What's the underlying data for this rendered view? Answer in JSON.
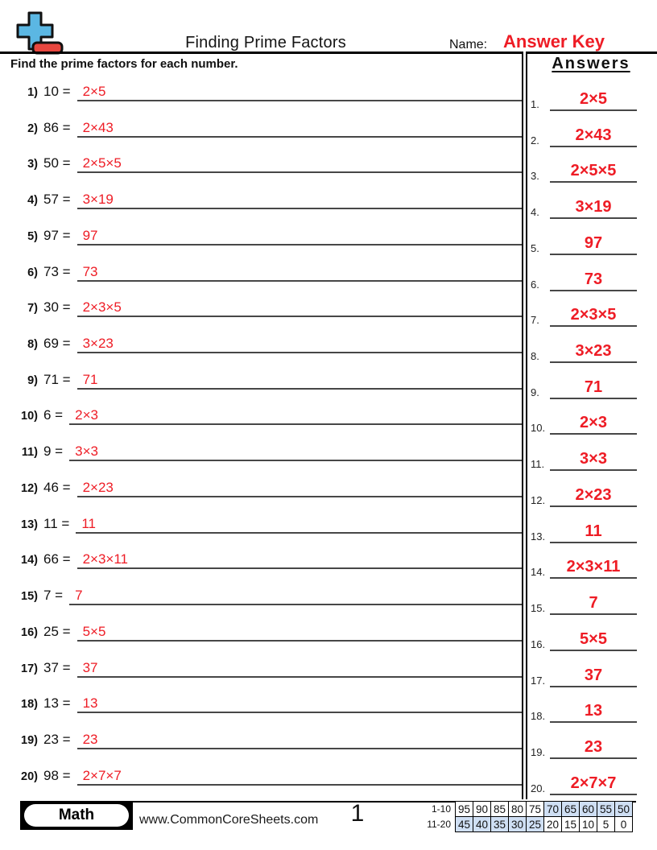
{
  "header": {
    "title": "Finding Prime Factors",
    "name_label": "Name:",
    "answer_key": "Answer Key",
    "instructions": "Find the prime factors for each number.",
    "answers_heading": "Answers"
  },
  "problems": [
    {
      "label": "1)",
      "expr": "10 =",
      "answer": "2×5"
    },
    {
      "label": "2)",
      "expr": "86 =",
      "answer": "2×43"
    },
    {
      "label": "3)",
      "expr": "50 =",
      "answer": "2×5×5"
    },
    {
      "label": "4)",
      "expr": "57 =",
      "answer": "3×19"
    },
    {
      "label": "5)",
      "expr": "97 =",
      "answer": "97"
    },
    {
      "label": "6)",
      "expr": "73 =",
      "answer": "73"
    },
    {
      "label": "7)",
      "expr": "30 =",
      "answer": "2×3×5"
    },
    {
      "label": "8)",
      "expr": "69 =",
      "answer": "3×23"
    },
    {
      "label": "9)",
      "expr": "71 =",
      "answer": "71"
    },
    {
      "label": "10)",
      "expr": "6 =",
      "answer": "2×3"
    },
    {
      "label": "11)",
      "expr": "9 =",
      "answer": "3×3"
    },
    {
      "label": "12)",
      "expr": "46 =",
      "answer": "2×23"
    },
    {
      "label": "13)",
      "expr": "11 =",
      "answer": "11"
    },
    {
      "label": "14)",
      "expr": "66 =",
      "answer": "2×3×11"
    },
    {
      "label": "15)",
      "expr": "7 =",
      "answer": "7"
    },
    {
      "label": "16)",
      "expr": "25 =",
      "answer": "5×5"
    },
    {
      "label": "17)",
      "expr": "37 =",
      "answer": "37"
    },
    {
      "label": "18)",
      "expr": "13 =",
      "answer": "13"
    },
    {
      "label": "19)",
      "expr": "23 =",
      "answer": "23"
    },
    {
      "label": "20)",
      "expr": "98 =",
      "answer": "2×7×7"
    }
  ],
  "answer_column": [
    {
      "label": "1.",
      "value": "2×5"
    },
    {
      "label": "2.",
      "value": "2×43"
    },
    {
      "label": "3.",
      "value": "2×5×5"
    },
    {
      "label": "4.",
      "value": "3×19"
    },
    {
      "label": "5.",
      "value": "97"
    },
    {
      "label": "6.",
      "value": "73"
    },
    {
      "label": "7.",
      "value": "2×3×5"
    },
    {
      "label": "8.",
      "value": "3×23"
    },
    {
      "label": "9.",
      "value": "71"
    },
    {
      "label": "10.",
      "value": "2×3"
    },
    {
      "label": "11.",
      "value": "3×3"
    },
    {
      "label": "12.",
      "value": "2×23"
    },
    {
      "label": "13.",
      "value": "11"
    },
    {
      "label": "14.",
      "value": "2×3×11"
    },
    {
      "label": "15.",
      "value": "7"
    },
    {
      "label": "16.",
      "value": "5×5"
    },
    {
      "label": "17.",
      "value": "37"
    },
    {
      "label": "18.",
      "value": "13"
    },
    {
      "label": "19.",
      "value": "23"
    },
    {
      "label": "20.",
      "value": "2×7×7"
    }
  ],
  "footer": {
    "subject_badge": "Math",
    "website": "www.CommonCoreSheets.com",
    "page_number": "1",
    "score_table": {
      "rows": [
        {
          "label": "1-10",
          "cells": [
            "95",
            "90",
            "85",
            "80",
            "75",
            "70",
            "65",
            "60",
            "55",
            "50"
          ],
          "highlight": [
            0,
            0,
            0,
            0,
            0,
            1,
            1,
            1,
            1,
            1
          ]
        },
        {
          "label": "11-20",
          "cells": [
            "45",
            "40",
            "35",
            "30",
            "25",
            "20",
            "15",
            "10",
            "5",
            "0"
          ],
          "highlight": [
            1,
            1,
            1,
            1,
            1,
            0,
            0,
            0,
            0,
            0
          ]
        }
      ]
    }
  },
  "icons": {
    "logo": "plus-minus-logo"
  },
  "colors": {
    "answer_red": "#ee1c25",
    "logo_blue": "#5bb7e3",
    "logo_minus_red": "#e8473f",
    "score_highlight_blue": "#cfdff4",
    "line_black": "#000000"
  }
}
